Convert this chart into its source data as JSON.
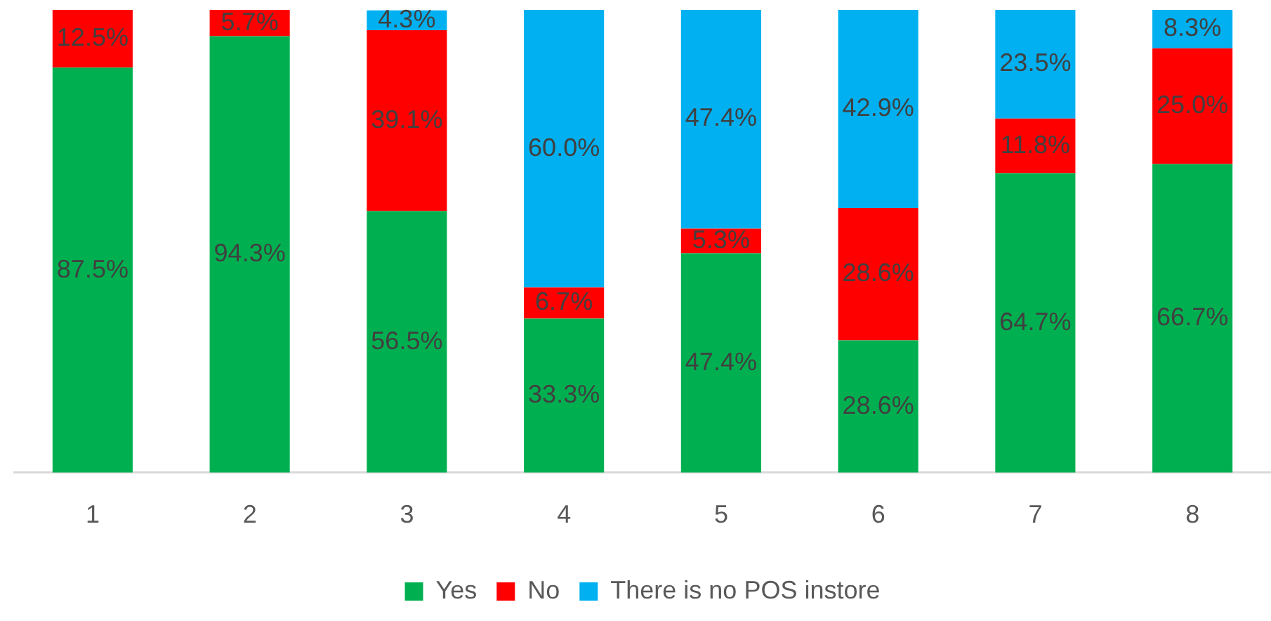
{
  "chart_data": {
    "type": "bar",
    "stacked": true,
    "categories": [
      "1",
      "2",
      "3",
      "4",
      "5",
      "6",
      "7",
      "8"
    ],
    "series": [
      {
        "name": "Yes",
        "color": "#00b050",
        "values": [
          87.5,
          94.3,
          56.5,
          33.3,
          47.4,
          28.6,
          64.7,
          66.7
        ],
        "value_labels": [
          "87.5%",
          "94.3%",
          "56.5%",
          "33.3%",
          "47.4%",
          "28.6%",
          "64.7%",
          "66.7%"
        ]
      },
      {
        "name": "No",
        "color": "#ff0000",
        "values": [
          12.5,
          5.7,
          39.1,
          6.7,
          5.3,
          28.6,
          11.8,
          25.0
        ],
        "value_labels": [
          "12.5%",
          "5.7%",
          "39.1%",
          "6.7%",
          "5.3%",
          "28.6%",
          "11.8%",
          "25.0%"
        ]
      },
      {
        "name": "There is no POS instore",
        "color": "#00b0f0",
        "values": [
          null,
          null,
          4.3,
          60.0,
          47.4,
          42.9,
          23.5,
          8.3
        ],
        "value_labels": [
          null,
          null,
          "4.3%",
          "60.0%",
          "47.4%",
          "42.9%",
          "23.5%",
          "8.3%"
        ]
      }
    ],
    "ylim": [
      0,
      100
    ],
    "tick_labels": "x",
    "grid": false,
    "legend": "bottom"
  }
}
